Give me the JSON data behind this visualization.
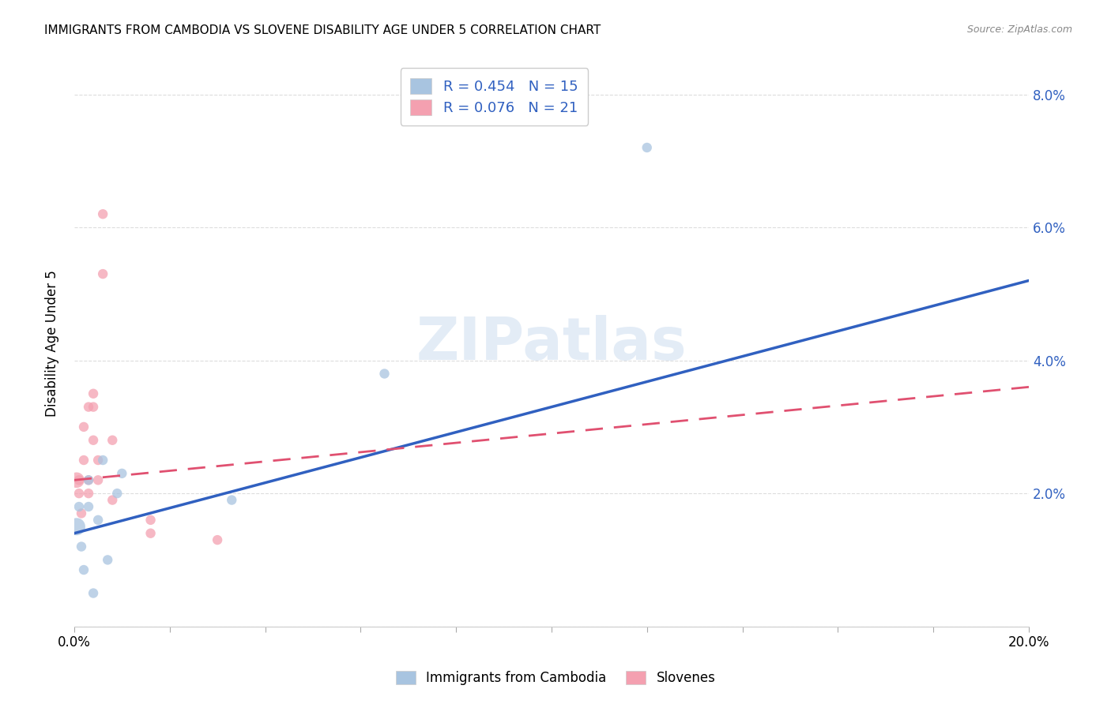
{
  "title": "IMMIGRANTS FROM CAMBODIA VS SLOVENE DISABILITY AGE UNDER 5 CORRELATION CHART",
  "source": "Source: ZipAtlas.com",
  "xlabel": "",
  "ylabel": "Disability Age Under 5",
  "xlim": [
    0.0,
    0.2
  ],
  "ylim": [
    0.0,
    0.085
  ],
  "xticks": [
    0.0,
    0.02,
    0.04,
    0.06,
    0.08,
    0.1,
    0.12,
    0.14,
    0.16,
    0.18,
    0.2
  ],
  "yticks": [
    0.0,
    0.02,
    0.04,
    0.06,
    0.08
  ],
  "ytick_labels": [
    "",
    "2.0%",
    "4.0%",
    "6.0%",
    "8.0%"
  ],
  "xtick_labels": [
    "0.0%",
    "",
    "",
    "",
    "",
    "",
    "",
    "",
    "",
    "",
    "20.0%"
  ],
  "cambodia_R": 0.454,
  "cambodia_N": 15,
  "slovene_R": 0.076,
  "slovene_N": 21,
  "cambodia_color": "#a8c4e0",
  "slovene_color": "#f4a0b0",
  "cambodia_line_color": "#3060c0",
  "slovene_line_color": "#e05070",
  "watermark": "ZIPatlas",
  "cambodia_x": [
    0.0005,
    0.001,
    0.0015,
    0.002,
    0.003,
    0.003,
    0.004,
    0.005,
    0.006,
    0.007,
    0.009,
    0.01,
    0.033,
    0.065,
    0.12
  ],
  "cambodia_y": [
    0.015,
    0.018,
    0.012,
    0.0085,
    0.018,
    0.022,
    0.005,
    0.016,
    0.025,
    0.01,
    0.02,
    0.023,
    0.019,
    0.038,
    0.072
  ],
  "slovene_x": [
    0.0005,
    0.001,
    0.001,
    0.0015,
    0.002,
    0.002,
    0.003,
    0.003,
    0.003,
    0.004,
    0.004,
    0.004,
    0.005,
    0.005,
    0.006,
    0.006,
    0.008,
    0.008,
    0.016,
    0.016,
    0.03
  ],
  "slovene_y": [
    0.022,
    0.02,
    0.022,
    0.017,
    0.025,
    0.03,
    0.02,
    0.022,
    0.033,
    0.028,
    0.033,
    0.035,
    0.022,
    0.025,
    0.053,
    0.062,
    0.019,
    0.028,
    0.014,
    0.016,
    0.013
  ],
  "cambodia_sizes": [
    250,
    80,
    80,
    80,
    80,
    80,
    80,
    80,
    80,
    80,
    80,
    80,
    80,
    80,
    80
  ],
  "slovene_sizes": [
    200,
    80,
    80,
    80,
    80,
    80,
    80,
    80,
    80,
    80,
    80,
    80,
    80,
    80,
    80,
    80,
    80,
    80,
    80,
    80,
    80
  ],
  "cam_line_x": [
    0.0,
    0.2
  ],
  "cam_line_y": [
    0.014,
    0.052
  ],
  "slo_line_x": [
    0.0,
    0.2
  ],
  "slo_line_y": [
    0.022,
    0.036
  ],
  "legend_cambodia_label": "R = 0.454   N = 15",
  "legend_slovene_label": "R = 0.076   N = 21",
  "bottom_legend_cambodia": "Immigrants from Cambodia",
  "bottom_legend_slovene": "Slovenes",
  "grid_color": "#dddddd",
  "background_color": "#ffffff"
}
